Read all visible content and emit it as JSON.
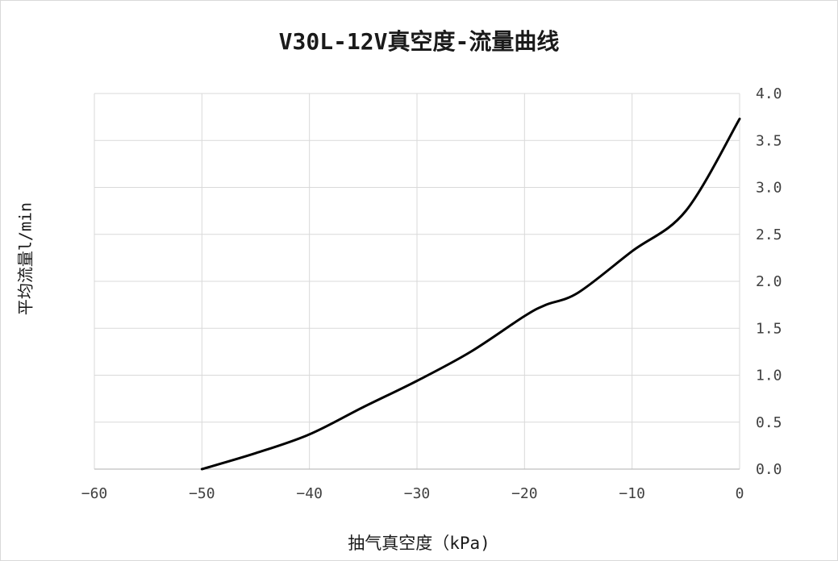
{
  "chart_data": {
    "type": "line",
    "title": "V30L-12V真空度-流量曲线",
    "xlabel": "抽气真空度（kPa)",
    "ylabel": "平均流量l/min",
    "xlim": [
      -60,
      0
    ],
    "ylim": [
      0,
      4.0
    ],
    "x_ticks": [
      -60,
      -50,
      -40,
      -30,
      -20,
      -10,
      0
    ],
    "x_tick_labels": [
      "−60",
      "−50",
      "−40",
      "−30",
      "−20",
      "−10",
      "0"
    ],
    "y_ticks": [
      0,
      0.5,
      1.0,
      1.5,
      2.0,
      2.5,
      3.0,
      3.5,
      4.0
    ],
    "y_tick_labels": [
      "0.0",
      "0.5",
      "1.0",
      "1.5",
      "2.0",
      "2.5",
      "3.0",
      "3.5",
      "4.0"
    ],
    "y_axis_side": "right",
    "grid": true,
    "series": [
      {
        "color": "#000000",
        "x": [
          -50,
          -45,
          -40,
          -35,
          -30,
          -25,
          -20,
          -18,
          -15,
          -10,
          -5,
          0
        ],
        "y": [
          0.0,
          0.17,
          0.37,
          0.66,
          0.94,
          1.25,
          1.63,
          1.75,
          1.88,
          2.32,
          2.75,
          3.73
        ]
      }
    ]
  }
}
